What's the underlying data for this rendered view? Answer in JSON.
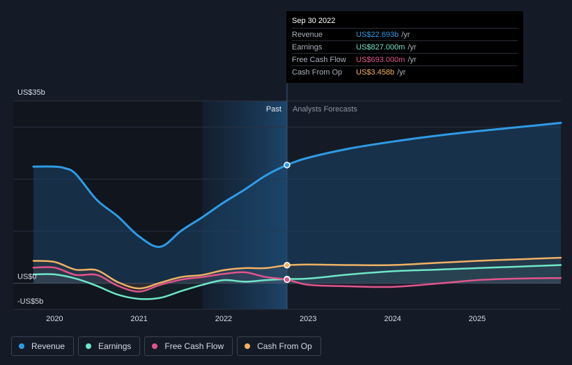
{
  "tooltip": {
    "date": "Sep 30 2022",
    "rows": [
      {
        "label": "Revenue",
        "value": "US$22.693b",
        "unit": "/yr",
        "color": "#2f9be6"
      },
      {
        "label": "Earnings",
        "value": "US$827.000m",
        "unit": "/yr",
        "color": "#6ee7c8"
      },
      {
        "label": "Free Cash Flow",
        "value": "US$693.000m",
        "unit": "/yr",
        "color": "#e0558c"
      },
      {
        "label": "Cash From Op",
        "value": "US$3.458b",
        "unit": "/yr",
        "color": "#f0b265"
      }
    ]
  },
  "legend": [
    {
      "label": "Revenue",
      "color": "#2f9be6"
    },
    {
      "label": "Earnings",
      "color": "#6ee7c8"
    },
    {
      "label": "Free Cash Flow",
      "color": "#e0558c"
    },
    {
      "label": "Cash From Op",
      "color": "#f0b265"
    }
  ],
  "chart_data": {
    "type": "line",
    "title": "",
    "xlabel": "",
    "ylabel": "",
    "ylim": [
      -5,
      35
    ],
    "xlim": [
      2019.7,
      2025.99
    ],
    "past_end": 2022.75,
    "highlight_start": 2021.75,
    "ytick_labels": [
      {
        "value": 35,
        "label": "US$35b"
      },
      {
        "value": 0,
        "label": "US$0"
      },
      {
        "value": -5,
        "label": "-US$5b"
      }
    ],
    "gridlines": [
      35,
      30,
      20,
      10,
      0,
      -5
    ],
    "xticks": [
      {
        "value": 2020,
        "label": "2020"
      },
      {
        "value": 2021,
        "label": "2021"
      },
      {
        "value": 2022,
        "label": "2022"
      },
      {
        "value": 2023,
        "label": "2023"
      },
      {
        "value": 2024,
        "label": "2024"
      },
      {
        "value": 2025,
        "label": "2025"
      }
    ],
    "region_labels": {
      "past": "Past",
      "forecast": "Analysts Forecasts"
    },
    "series": [
      {
        "name": "Revenue",
        "color": "#2f9be6",
        "fill": true,
        "x": [
          2019.75,
          2020.0,
          2020.12,
          2020.25,
          2020.5,
          2020.75,
          2021.0,
          2021.25,
          2021.5,
          2021.75,
          2022.0,
          2022.25,
          2022.5,
          2022.75,
          2023.0,
          2023.5,
          2024.0,
          2024.5,
          2025.0,
          2025.5,
          2025.99
        ],
        "y": [
          22.4,
          22.4,
          22.1,
          21.0,
          16.0,
          12.8,
          9.0,
          7.0,
          10.1,
          12.7,
          15.5,
          18.0,
          20.7,
          22.7,
          24.1,
          25.9,
          27.2,
          28.3,
          29.2,
          30.0,
          30.8
        ]
      },
      {
        "name": "Earnings",
        "color": "#6ee7c8",
        "fill": false,
        "x": [
          2019.75,
          2020.0,
          2020.25,
          2020.5,
          2020.75,
          2021.0,
          2021.25,
          2021.5,
          2021.75,
          2022.0,
          2022.25,
          2022.5,
          2022.75,
          2023.0,
          2023.5,
          2024.0,
          2024.5,
          2025.0,
          2025.5,
          2025.99
        ],
        "y": [
          1.7,
          1.7,
          0.9,
          -0.5,
          -2.2,
          -3.0,
          -2.8,
          -1.5,
          -0.3,
          0.6,
          0.3,
          0.6,
          0.8,
          0.9,
          1.7,
          2.3,
          2.6,
          2.9,
          3.2,
          3.5
        ]
      },
      {
        "name": "Free Cash Flow",
        "color": "#e0558c",
        "fill": false,
        "x": [
          2019.75,
          2020.0,
          2020.25,
          2020.5,
          2020.75,
          2021.0,
          2021.25,
          2021.5,
          2021.75,
          2022.0,
          2022.25,
          2022.5,
          2022.75,
          2023.0,
          2023.5,
          2024.0,
          2024.5,
          2025.0,
          2025.5,
          2025.99
        ],
        "y": [
          3.0,
          3.0,
          1.6,
          1.6,
          -0.5,
          -1.6,
          -0.3,
          0.7,
          1.2,
          1.8,
          2.1,
          1.2,
          0.7,
          -0.3,
          -0.6,
          -0.7,
          -0.1,
          0.6,
          0.9,
          1.0
        ]
      },
      {
        "name": "Cash From Op",
        "color": "#f0b265",
        "fill": false,
        "x": [
          2019.75,
          2020.0,
          2020.25,
          2020.5,
          2020.75,
          2021.0,
          2021.25,
          2021.5,
          2021.75,
          2022.0,
          2022.25,
          2022.5,
          2022.75,
          2023.0,
          2023.5,
          2024.0,
          2024.5,
          2025.0,
          2025.5,
          2025.99
        ],
        "y": [
          4.3,
          4.1,
          2.6,
          2.5,
          0.2,
          -1.0,
          0.1,
          1.2,
          1.6,
          2.5,
          2.9,
          2.9,
          3.46,
          3.6,
          3.5,
          3.5,
          3.9,
          4.3,
          4.6,
          4.9
        ]
      }
    ]
  }
}
